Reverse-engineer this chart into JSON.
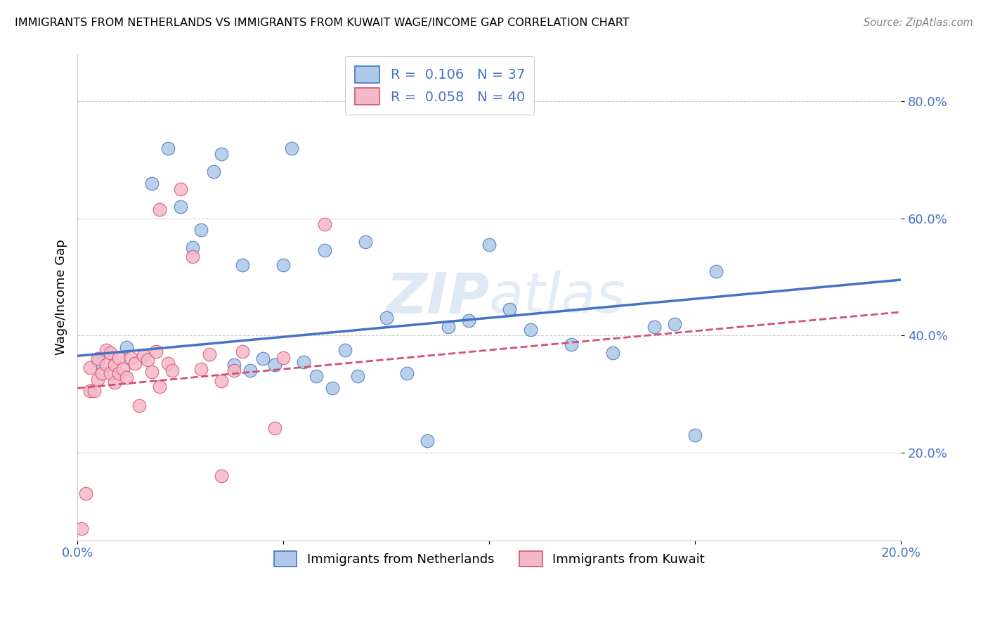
{
  "title": "IMMIGRANTS FROM NETHERLANDS VS IMMIGRANTS FROM KUWAIT WAGE/INCOME GAP CORRELATION CHART",
  "source": "Source: ZipAtlas.com",
  "ylabel": "Wage/Income Gap",
  "xlabel_blue": "Immigrants from Netherlands",
  "xlabel_pink": "Immigrants from Kuwait",
  "R_blue": 0.106,
  "N_blue": 37,
  "R_pink": 0.058,
  "N_pink": 40,
  "xlim": [
    0.0,
    0.2
  ],
  "ylim": [
    0.05,
    0.88
  ],
  "yticks": [
    0.2,
    0.4,
    0.6,
    0.8
  ],
  "ytick_labels": [
    "20.0%",
    "40.0%",
    "60.0%",
    "80.0%"
  ],
  "xticks": [
    0.0,
    0.05,
    0.1,
    0.15,
    0.2
  ],
  "xtick_labels": [
    "0.0%",
    "",
    "",
    "",
    "20.0%"
  ],
  "blue_color": "#adc8e8",
  "blue_line_color": "#4472c4",
  "pink_color": "#f5b8c8",
  "pink_line_color": "#d45070",
  "watermark": "ZIPatlas",
  "blue_scatter_x": [
    0.005,
    0.012,
    0.018,
    0.022,
    0.025,
    0.028,
    0.03,
    0.033,
    0.035,
    0.038,
    0.04,
    0.042,
    0.045,
    0.048,
    0.05,
    0.052,
    0.055,
    0.058,
    0.06,
    0.062,
    0.065,
    0.068,
    0.07,
    0.075,
    0.08,
    0.085,
    0.09,
    0.095,
    0.1,
    0.105,
    0.11,
    0.12,
    0.13,
    0.14,
    0.145,
    0.15,
    0.155
  ],
  "blue_scatter_y": [
    0.355,
    0.38,
    0.66,
    0.72,
    0.62,
    0.55,
    0.58,
    0.68,
    0.71,
    0.35,
    0.52,
    0.34,
    0.36,
    0.35,
    0.52,
    0.72,
    0.355,
    0.33,
    0.545,
    0.31,
    0.375,
    0.33,
    0.56,
    0.43,
    0.335,
    0.22,
    0.415,
    0.425,
    0.555,
    0.445,
    0.41,
    0.385,
    0.37,
    0.415,
    0.42,
    0.23,
    0.51
  ],
  "pink_scatter_x": [
    0.001,
    0.002,
    0.003,
    0.003,
    0.004,
    0.005,
    0.005,
    0.006,
    0.007,
    0.007,
    0.008,
    0.008,
    0.009,
    0.009,
    0.01,
    0.01,
    0.011,
    0.012,
    0.013,
    0.014,
    0.015,
    0.016,
    0.017,
    0.018,
    0.019,
    0.02,
    0.022,
    0.023,
    0.025,
    0.028,
    0.03,
    0.032,
    0.035,
    0.038,
    0.04,
    0.048,
    0.05,
    0.06,
    0.02,
    0.035
  ],
  "pink_scatter_y": [
    0.07,
    0.13,
    0.305,
    0.345,
    0.305,
    0.325,
    0.36,
    0.335,
    0.35,
    0.375,
    0.335,
    0.37,
    0.32,
    0.35,
    0.335,
    0.362,
    0.342,
    0.328,
    0.362,
    0.352,
    0.28,
    0.365,
    0.358,
    0.338,
    0.372,
    0.312,
    0.352,
    0.34,
    0.65,
    0.535,
    0.342,
    0.368,
    0.322,
    0.34,
    0.372,
    0.242,
    0.362,
    0.59,
    0.615,
    0.16
  ],
  "blue_trend_x": [
    0.0,
    0.2
  ],
  "blue_trend_y": [
    0.365,
    0.495
  ],
  "pink_trend_x": [
    0.0,
    0.2
  ],
  "pink_trend_y": [
    0.31,
    0.44
  ]
}
